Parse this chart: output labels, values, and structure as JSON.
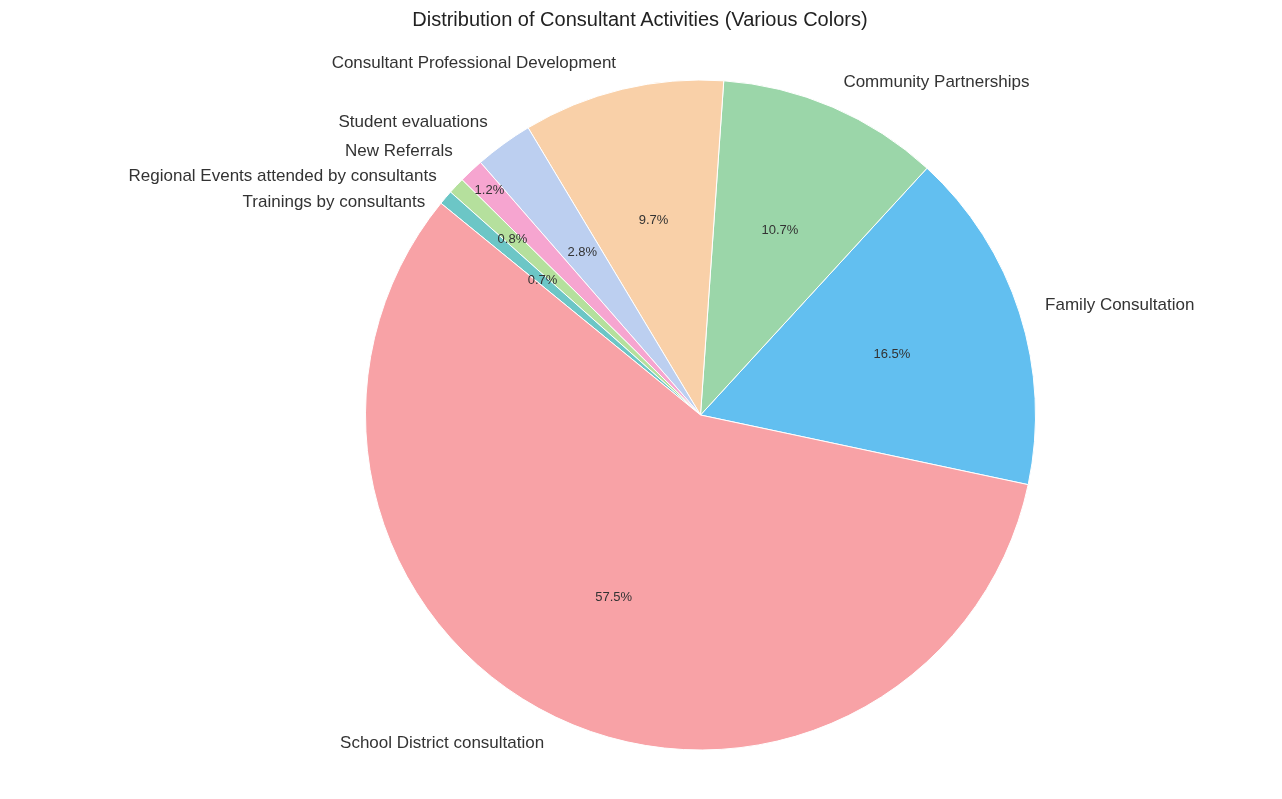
{
  "chart_data": {
    "type": "pie",
    "title": "Distribution of Consultant Activities (Various Colors)",
    "categories": [
      "Family Consultation",
      "Community Partnerships",
      "Consultant Professional Development",
      "Student evaluations",
      "New Referrals",
      "Regional Events attended by consultants",
      "Trainings by consultants",
      "School District consultation"
    ],
    "values": [
      16.5,
      10.7,
      9.7,
      2.8,
      1.2,
      0.8,
      0.7,
      57.5
    ],
    "colors": [
      "#62bff0",
      "#9bd6a9",
      "#f9d0a8",
      "#bccff0",
      "#f6a5d0",
      "#b5e09d",
      "#6cc6c6",
      "#f8a2a6"
    ],
    "value_labels": [
      "16.5%",
      "10.7%",
      "9.7%",
      "2.8%",
      "1.2%",
      "0.8%",
      "0.7%",
      "57.5%"
    ]
  }
}
